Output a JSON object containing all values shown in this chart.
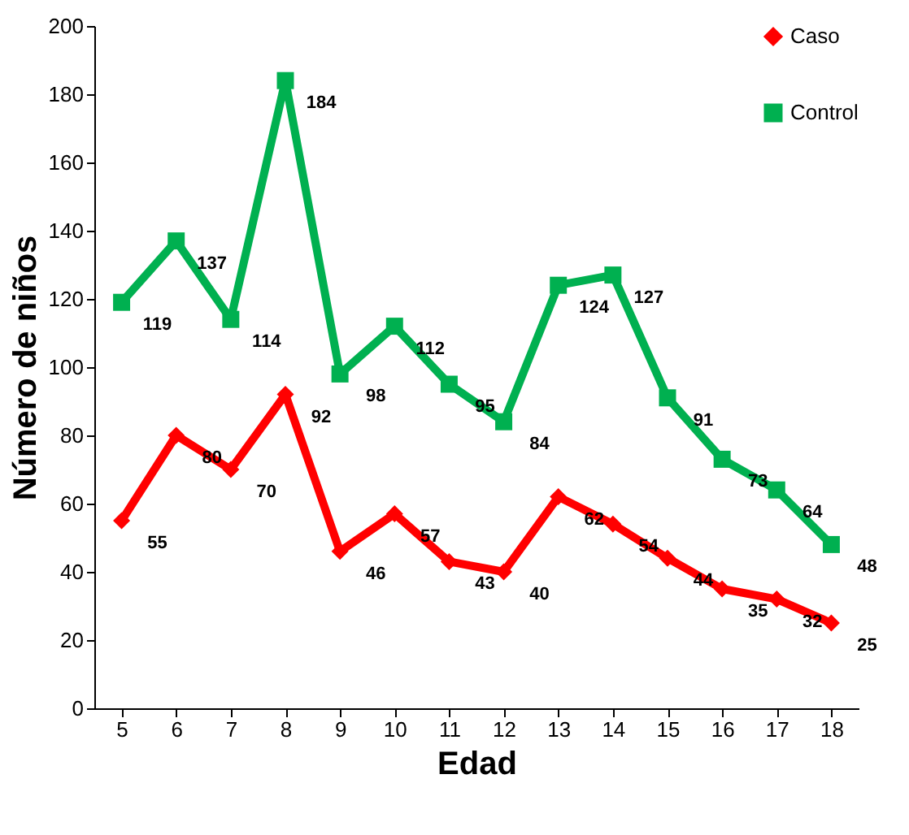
{
  "chart_data": {
    "type": "line",
    "xlabel": "Edad",
    "ylabel": "Número de niños",
    "categories": [
      "5",
      "6",
      "7",
      "8",
      "9",
      "10",
      "11",
      "12",
      "13",
      "14",
      "15",
      "16",
      "17",
      "18"
    ],
    "series": [
      {
        "name": "Caso",
        "color": "#ff0000",
        "marker": "diamond",
        "values": [
          55,
          80,
          70,
          92,
          46,
          57,
          43,
          40,
          62,
          54,
          44,
          35,
          32,
          25
        ]
      },
      {
        "name": "Control",
        "color": "#00b050",
        "marker": "square",
        "values": [
          119,
          137,
          114,
          184,
          98,
          112,
          95,
          84,
          124,
          127,
          91,
          73,
          64,
          48
        ]
      }
    ],
    "ylim": [
      0,
      200
    ],
    "yticks": [
      0,
      20,
      40,
      60,
      80,
      100,
      120,
      140,
      160,
      180,
      200
    ],
    "data_labels": true,
    "grid": false,
    "legend": "top right",
    "line_style": "solid"
  }
}
